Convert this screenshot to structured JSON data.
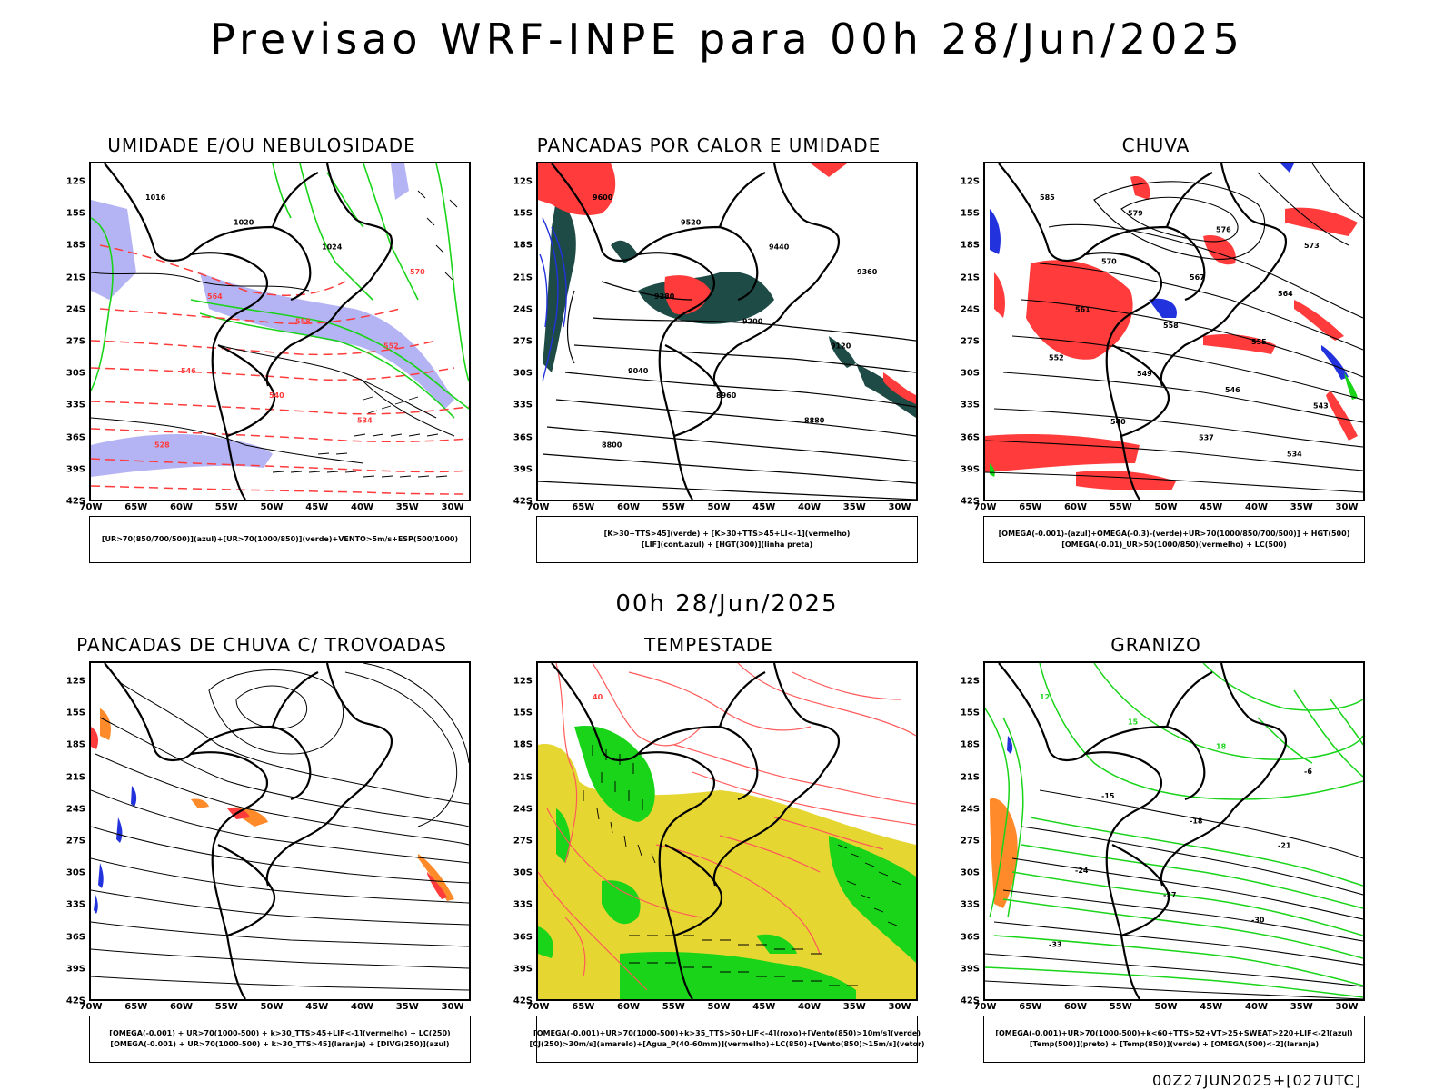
{
  "title": "Previsao WRF-INPE  para 00h 28/Jun/2025",
  "mid_date": "00h 28/Jun/2025",
  "footer": "00Z27JUN2025+[027UTC]",
  "axes": {
    "lat": [
      "12S",
      "15S",
      "18S",
      "21S",
      "24S",
      "27S",
      "30S",
      "33S",
      "36S",
      "39S",
      "42S"
    ],
    "lon": [
      "70W",
      "65W",
      "60W",
      "55W",
      "50W",
      "45W",
      "40W",
      "35W",
      "30W"
    ]
  },
  "colors": {
    "red": "#ff3b3b",
    "green": "#19d419",
    "blue": "#2233dd",
    "lavender": "#b4b4f5",
    "darkgreen": "#1e4b46",
    "yellow": "#e6d632",
    "orange": "#ff8a2a",
    "lightred": "#ff5a5a"
  },
  "panels": [
    {
      "title": "UMIDADE E/OU NEBULOSIDADE",
      "legend": [
        "[UR>70(850/700/500)](azul)+[UR>70(1000/850)](verde)+VENTO>5m/s+ESP(500/1000)"
      ],
      "contours": [
        {
          "label": "1016",
          "color": "black"
        },
        {
          "label": "1020",
          "color": "black"
        },
        {
          "label": "1024",
          "color": "black"
        },
        {
          "label": "570",
          "color": "red"
        },
        {
          "label": "564",
          "color": "red"
        },
        {
          "label": "558",
          "color": "red"
        },
        {
          "label": "552",
          "color": "red"
        },
        {
          "label": "546",
          "color": "red"
        },
        {
          "label": "540",
          "color": "red"
        },
        {
          "label": "534",
          "color": "red"
        },
        {
          "label": "528",
          "color": "red"
        }
      ]
    },
    {
      "title": "PANCADAS POR CALOR E UMIDADE",
      "legend": [
        "[K>30+TTS>45](verde) + [K>30+TTS>45+LI<-1](vermelho)",
        "[LIF](cont.azul) + [HGT(300)](linha preta)"
      ],
      "contours": [
        {
          "label": "9600",
          "color": "black"
        },
        {
          "label": "9520",
          "color": "black"
        },
        {
          "label": "9440",
          "color": "black"
        },
        {
          "label": "9360",
          "color": "black"
        },
        {
          "label": "9280",
          "color": "black"
        },
        {
          "label": "9200",
          "color": "black"
        },
        {
          "label": "9120",
          "color": "black"
        },
        {
          "label": "9040",
          "color": "black"
        },
        {
          "label": "8960",
          "color": "black"
        },
        {
          "label": "8880",
          "color": "black"
        },
        {
          "label": "8800",
          "color": "black"
        }
      ]
    },
    {
      "title": "CHUVA",
      "legend": [
        "[OMEGA(-0.001)-(azul)+OMEGA(-0.3)-(verde)+UR>70(1000/850/700/500)] + HGT(500)",
        "[OMEGA(-0.01)_UR>50(1000/850)(vermelho) + LC(500)"
      ],
      "contours": [
        {
          "label": "585",
          "color": "black"
        },
        {
          "label": "579",
          "color": "black"
        },
        {
          "label": "576",
          "color": "black"
        },
        {
          "label": "573",
          "color": "black"
        },
        {
          "label": "570",
          "color": "black"
        },
        {
          "label": "567",
          "color": "black"
        },
        {
          "label": "564",
          "color": "black"
        },
        {
          "label": "561",
          "color": "black"
        },
        {
          "label": "558",
          "color": "black"
        },
        {
          "label": "555",
          "color": "black"
        },
        {
          "label": "552",
          "color": "black"
        },
        {
          "label": "549",
          "color": "black"
        },
        {
          "label": "546",
          "color": "black"
        },
        {
          "label": "543",
          "color": "black"
        },
        {
          "label": "540",
          "color": "black"
        },
        {
          "label": "537",
          "color": "black"
        },
        {
          "label": "534",
          "color": "black"
        }
      ]
    },
    {
      "title": "PANCADAS DE CHUVA C/ TROVOADAS",
      "legend": [
        "[OMEGA(-0.001) + UR>70(1000-500) + k>30_TTS>45+LIF<-1](vermelho) + LC(250)",
        "[OMEGA(-0.001) + UR>70(1000-500) + k>30_TTS>45](laranja) + [DIVG(250)](azul)"
      ],
      "contours": []
    },
    {
      "title": "TEMPESTADE",
      "legend": [
        "[OMEGA(-0.001)+UR>70(1000-500)+k>35_TTS>50+LIF<-4](roxo)+[Vento(850)>10m/s](verde)",
        "[CJ(250)>30m/s](amarelo)+[Agua_P(40-60mm)](vermelho)+LC(850)+[Vento(850)>15m/s](vetor)"
      ],
      "contours": [
        {
          "label": "40",
          "color": "red"
        }
      ]
    },
    {
      "title": "GRANIZO",
      "legend": [
        "[OMEGA(-0.001)+UR>70(1000-500)+k<60+TTS>52+VT>25+SWEAT>220+LIF<-2](azul)",
        "[Temp(500)](preto) + [Temp(850)](verde) + [OMEGA(500)<-2](laranja)"
      ],
      "contours": [
        {
          "label": "12",
          "color": "green"
        },
        {
          "label": "15",
          "color": "green"
        },
        {
          "label": "18",
          "color": "green"
        },
        {
          "label": "-6",
          "color": "black"
        },
        {
          "label": "-15",
          "color": "black"
        },
        {
          "label": "-18",
          "color": "black"
        },
        {
          "label": "-21",
          "color": "black"
        },
        {
          "label": "-24",
          "color": "black"
        },
        {
          "label": "-27",
          "color": "black"
        },
        {
          "label": "-30",
          "color": "black"
        },
        {
          "label": "-33",
          "color": "black"
        }
      ]
    }
  ]
}
